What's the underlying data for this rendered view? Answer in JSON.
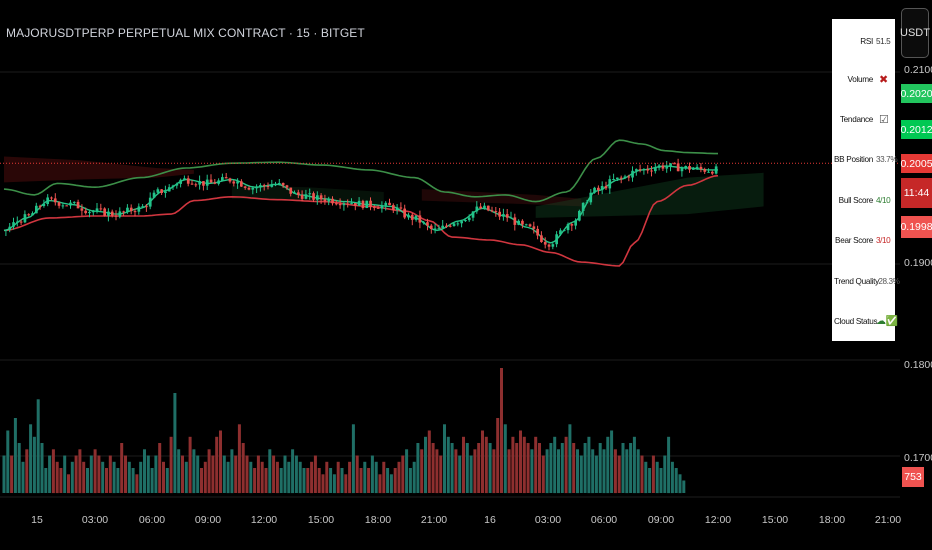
{
  "header": {
    "title": "MAJORUSDTPERP PERPETUAL MIX CONTRACT · 15 · BITGET",
    "currency": "USDT"
  },
  "colors": {
    "background": "#000000",
    "bull": "#26a69a",
    "bull_candle": "#22c38a",
    "bear": "#ef5350",
    "upper_band": "#3c8f48",
    "middle_band": "#4a8a3a",
    "lower_band": "#d0363f",
    "panel_bg": "#ffffff"
  },
  "indicator_panel": {
    "rows": [
      {
        "label": "RSI",
        "value": "51.5",
        "value_color": "#333333"
      },
      {
        "label": "Volume",
        "value": "✖",
        "value_color": "#b71c1c"
      },
      {
        "label": "Tendance",
        "value": "☑",
        "value_color": "#555555"
      },
      {
        "label": "BB Position",
        "value": "33.7%",
        "value_color": "#555555"
      },
      {
        "label": "Bull Score",
        "value": "4/10",
        "value_color": "#2e7d32"
      },
      {
        "label": "Bear Score",
        "value": "3/10",
        "value_color": "#c62828"
      },
      {
        "label": "Trend Quality",
        "value": "-28.3%",
        "value_color": "#555555"
      },
      {
        "label": "Cloud Status",
        "value": "☁✅",
        "value_color": "#2e7d32"
      }
    ]
  },
  "price_tags": [
    {
      "label": "0.2020",
      "color": "#22c55e",
      "text_color": "#ffffff"
    },
    {
      "label": "0.2012",
      "color": "#00c853",
      "text_color": "#ffffff"
    },
    {
      "label": "0.2005",
      "color": "#e53935",
      "text_color": "#ffffff"
    },
    {
      "label": "11:44",
      "color": "#c62828",
      "text_color": "#ffffff"
    },
    {
      "label": "0.1998",
      "color": "#ef5350",
      "text_color": "#ffffff"
    }
  ],
  "volume_tag": {
    "label": "753",
    "color": "#ef5350"
  },
  "chart_data": {
    "type": "candlestick",
    "title": "MAJORUSDTPERP PERPETUAL MIX CONTRACT · 15 · BITGET",
    "y_ticks": [
      "0.2100",
      "0.1900",
      "0.1800",
      "0.1700"
    ],
    "ylim": [
      0.165,
      0.2135
    ],
    "x_ticks": [
      "15",
      "03:00",
      "06:00",
      "09:00",
      "12:00",
      "15:00",
      "18:00",
      "21:00",
      "16",
      "03:00",
      "06:00",
      "09:00",
      "12:00",
      "15:00",
      "18:00",
      "21:00"
    ],
    "last_price": 0.2005,
    "series": [
      {
        "name": "Price",
        "anchor_points": [
          [
            0,
            0.1935
          ],
          [
            6,
            0.1948
          ],
          [
            12,
            0.1966
          ],
          [
            18,
            0.1962
          ],
          [
            24,
            0.1955
          ],
          [
            30,
            0.1952
          ],
          [
            36,
            0.1958
          ],
          [
            42,
            0.1976
          ],
          [
            48,
            0.1988
          ],
          [
            54,
            0.1984
          ],
          [
            60,
            0.1988
          ],
          [
            66,
            0.198
          ],
          [
            72,
            0.1983
          ],
          [
            78,
            0.1972
          ],
          [
            84,
            0.1968
          ],
          [
            90,
            0.1965
          ],
          [
            96,
            0.1962
          ],
          [
            102,
            0.196
          ],
          [
            108,
            0.1948
          ],
          [
            114,
            0.1935
          ],
          [
            120,
            0.1945
          ],
          [
            126,
            0.1958
          ],
          [
            132,
            0.195
          ],
          [
            138,
            0.1938
          ],
          [
            144,
            0.1922
          ],
          [
            150,
            0.1944
          ],
          [
            156,
            0.1976
          ],
          [
            162,
            0.1988
          ],
          [
            168,
            0.1998
          ],
          [
            174,
            0.2002
          ],
          [
            180,
            0.2
          ],
          [
            186,
            0.1998
          ],
          [
            188,
            0.1998
          ]
        ]
      },
      {
        "name": "Upper band",
        "anchor_points": [
          [
            0,
            0.1978
          ],
          [
            8,
            0.1972
          ],
          [
            14,
            0.1984
          ],
          [
            24,
            0.198
          ],
          [
            36,
            0.199
          ],
          [
            48,
            0.2
          ],
          [
            60,
            0.2005
          ],
          [
            72,
            0.2006
          ],
          [
            84,
            0.2003
          ],
          [
            96,
            0.1998
          ],
          [
            108,
            0.199
          ],
          [
            116,
            0.1975
          ],
          [
            124,
            0.197
          ],
          [
            132,
            0.1972
          ],
          [
            140,
            0.1965
          ],
          [
            148,
            0.1975
          ],
          [
            156,
            0.201
          ],
          [
            162,
            0.2029
          ],
          [
            168,
            0.2025
          ],
          [
            174,
            0.2018
          ],
          [
            180,
            0.2016
          ],
          [
            188,
            0.2015
          ]
        ]
      },
      {
        "name": "Lower band",
        "anchor_points": [
          [
            0,
            0.1935
          ],
          [
            12,
            0.1948
          ],
          [
            24,
            0.195
          ],
          [
            36,
            0.195
          ],
          [
            44,
            0.1952
          ],
          [
            50,
            0.1966
          ],
          [
            60,
            0.197
          ],
          [
            72,
            0.1967
          ],
          [
            84,
            0.1965
          ],
          [
            96,
            0.196
          ],
          [
            106,
            0.1955
          ],
          [
            112,
            0.1945
          ],
          [
            118,
            0.1928
          ],
          [
            128,
            0.1925
          ],
          [
            136,
            0.192
          ],
          [
            144,
            0.1912
          ],
          [
            152,
            0.1902
          ],
          [
            162,
            0.1898
          ],
          [
            166,
            0.1922
          ],
          [
            172,
            0.1965
          ],
          [
            180,
            0.1982
          ],
          [
            188,
            0.1992
          ]
        ]
      },
      {
        "name": "Volume",
        "volume_profile": [
          0.3,
          0.5,
          0.3,
          0.6,
          0.4,
          0.25,
          0.35,
          0.55,
          0.45,
          0.75,
          0.4,
          0.2,
          0.3,
          0.35,
          0.25,
          0.2,
          0.3,
          0.15,
          0.25,
          0.3,
          0.35,
          0.25,
          0.2,
          0.3,
          0.35,
          0.3,
          0.25,
          0.2,
          0.3,
          0.25,
          0.2,
          0.4,
          0.3,
          0.25,
          0.2,
          0.15,
          0.25,
          0.35,
          0.3,
          0.2,
          0.3,
          0.4,
          0.25,
          0.2,
          0.45,
          0.8,
          0.35,
          0.3,
          0.25,
          0.45,
          0.35,
          0.3,
          0.2,
          0.25,
          0.35,
          0.3,
          0.45,
          0.5,
          0.3,
          0.25,
          0.35,
          0.3,
          0.55,
          0.4,
          0.3,
          0.25,
          0.2,
          0.3,
          0.25,
          0.2,
          0.35,
          0.3,
          0.25,
          0.2,
          0.3,
          0.25,
          0.35,
          0.3,
          0.25,
          0.2,
          0.2,
          0.25,
          0.3,
          0.2,
          0.15,
          0.25,
          0.2,
          0.15,
          0.25,
          0.2,
          0.15,
          0.25,
          0.55,
          0.3,
          0.2,
          0.25,
          0.2,
          0.3,
          0.25,
          0.15,
          0.25,
          0.2,
          0.15,
          0.2,
          0.25,
          0.3,
          0.35,
          0.2,
          0.25,
          0.4,
          0.35,
          0.45,
          0.5,
          0.4,
          0.35,
          0.3,
          0.55,
          0.45,
          0.4,
          0.35,
          0.3,
          0.45,
          0.4,
          0.3,
          0.35,
          0.4,
          0.5,
          0.45,
          0.4,
          0.35,
          0.6,
          1.0,
          0.55,
          0.35,
          0.45,
          0.4,
          0.5,
          0.45,
          0.4,
          0.35,
          0.45,
          0.4,
          0.3,
          0.35,
          0.4,
          0.45,
          0.35,
          0.4,
          0.45,
          0.55,
          0.4,
          0.35,
          0.3,
          0.4,
          0.45,
          0.35,
          0.3,
          0.4,
          0.35,
          0.45,
          0.5,
          0.35,
          0.3,
          0.4,
          0.35,
          0.4,
          0.45,
          0.35,
          0.3,
          0.25,
          0.2,
          0.3,
          0.25,
          0.2,
          0.3,
          0.45,
          0.25,
          0.2,
          0.15,
          0.1
        ]
      }
    ]
  }
}
